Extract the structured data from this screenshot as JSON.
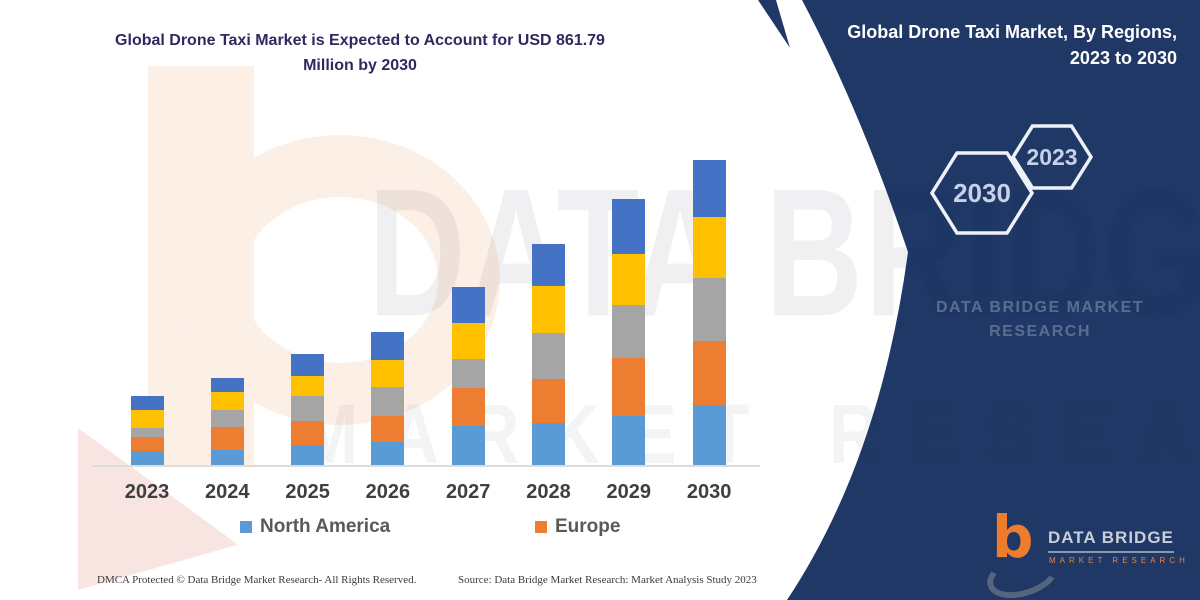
{
  "title": {
    "line1": "Global Drone Taxi Market is Expected to Account for USD 861.79",
    "line2": "Million by 2030"
  },
  "chart_data": {
    "type": "bar",
    "stacked": true,
    "title": "Global Drone Taxi Market is Expected to Account for USD 861.79 Million by 2030",
    "unit": "USD Million",
    "categories": [
      "2023",
      "2024",
      "2025",
      "2026",
      "2027",
      "2028",
      "2029",
      "2030"
    ],
    "series": [
      {
        "name": "North America",
        "color": "#5B9BD5",
        "values": [
          42,
          44,
          58,
          67,
          112,
          122,
          140,
          172
        ]
      },
      {
        "name": "Europe",
        "color": "#ED7D31",
        "values": [
          40,
          67,
          70,
          75,
          108,
          124,
          164,
          181
        ]
      },
      {
        "name": "",
        "color": "#A5A5A5",
        "values": [
          26,
          47,
          70,
          80,
          80,
          128,
          150,
          176
        ]
      },
      {
        "name": "",
        "color": "#FFC000",
        "values": [
          50,
          50,
          56,
          77,
          103,
          134,
          143,
          172
        ]
      },
      {
        "name": "",
        "color": "#4472C4",
        "values": [
          38,
          40,
          61,
          78,
          101,
          117,
          155,
          160.79
        ]
      }
    ],
    "totals": [
      196,
      248,
      315,
      377,
      504,
      625,
      752,
      861.79
    ],
    "legend": [
      {
        "label": "North America",
        "color": "#5B9BD5"
      },
      {
        "label": "Europe",
        "color": "#ED7D31"
      }
    ],
    "legend_position": "bottom",
    "gridlines": false,
    "axis_visible": false,
    "ylim": [
      0,
      900
    ]
  },
  "watermark": {
    "line1": "DATA BRIDGE",
    "line2": "MARKET RESEARCH"
  },
  "panel": {
    "color": "#1f3866",
    "title_line1": "Global Drone Taxi Market, By Regions,",
    "title_line2": "2023 to 2030",
    "hexagons": [
      {
        "label": "2030"
      },
      {
        "label": "2023"
      }
    ],
    "watermark_line1": "DATA BRIDGE MARKET",
    "watermark_line2": "RESEARCH",
    "logo": {
      "b": "b",
      "brand": "DATA BRIDGE",
      "sub": "MARKET RESEARCH"
    }
  },
  "footer": {
    "left": "DMCA Protected © Data Bridge Market Research- All Rights Reserved.",
    "right": "Source: Data Bridge Market Research: Market Analysis Study 2023"
  }
}
